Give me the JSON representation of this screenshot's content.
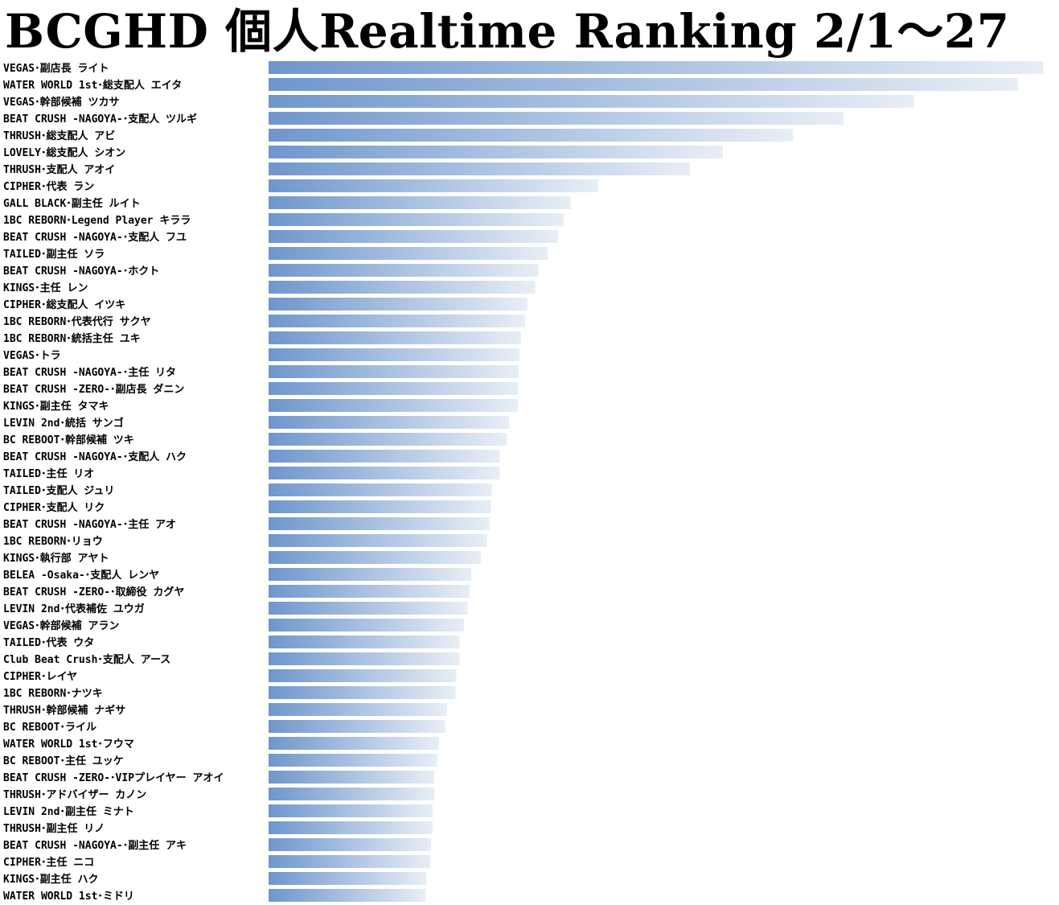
{
  "chart_data": {
    "type": "bar",
    "title": "BCGHD 個人Realtime Ranking  2/1～27",
    "orientation": "horizontal",
    "bar_color": "#6f96cc",
    "bar_color_end": "#e8eef6",
    "categories": [
      "VEGAS･副店長 ライト",
      "WATER WORLD 1st･総支配人 エイタ",
      "VEGAS･幹部候補 ツカサ",
      "BEAT CRUSH -NAGOYA-･支配人 ツルギ",
      "THRUSH･総支配人 アビ",
      "LOVELY･総支配人 シオン",
      "THRUSH･支配人 アオイ",
      "CIPHER･代表 ラン",
      "GALL BLACK･副主任 ルイト",
      "1BC REBORN･Legend Player キララ",
      "BEAT CRUSH -NAGOYA-･支配人 フユ",
      "TAILED･副主任 ソラ",
      "BEAT CRUSH -NAGOYA-･ホクト",
      "KINGS･主任 レン",
      "CIPHER･総支配人 イツキ",
      "1BC REBORN･代表代行 サクヤ",
      "1BC REBORN･統括主任 ユキ",
      "VEGAS･トラ",
      "BEAT CRUSH -NAGOYA-･主任 リタ",
      "BEAT CRUSH -ZERO-･副店長 ダニン",
      "KINGS･副主任 タマキ",
      "LEVIN 2nd･統括 サンゴ",
      "BC REBOOT･幹部候補 ツキ",
      "BEAT CRUSH -NAGOYA-･支配人 ハク",
      "TAILED･主任 リオ",
      "TAILED･支配人 ジュリ",
      "CIPHER･支配人 リク",
      "BEAT CRUSH -NAGOYA-･主任 アオ",
      "1BC REBORN･リョウ",
      "KINGS･執行部 アヤト",
      "BELEA -Osaka-･支配人 レンヤ",
      "BEAT CRUSH -ZERO-･取締役 カグヤ",
      "LEVIN 2nd･代表補佐 ユウガ",
      "VEGAS･幹部候補 アラン",
      "TAILED･代表 ウタ",
      "Club Beat Crush･支配人 アース",
      "CIPHER･レイヤ",
      "1BC REBORN･ナツキ",
      "THRUSH･幹部候補 ナギサ",
      "BC REBOOT･ライル",
      "WATER WORLD 1st･フウマ",
      "BC REBOOT･主任 ユッケ",
      "BEAT CRUSH -ZERO-･VIPプレイヤー アオイ",
      "THRUSH･アドバイザー カノン",
      "LEVIN 2nd･副主任 ミナト",
      "THRUSH･副主任 リノ",
      "BEAT CRUSH -NAGOYA-･副主任 アキ",
      "CIPHER･主任 ニコ",
      "KINGS･副主任 ハク",
      "WATER WORLD 1st･ミドリ"
    ],
    "values": [
      982,
      950,
      818,
      729,
      665,
      576,
      534,
      418,
      383,
      374,
      367,
      354,
      342,
      338,
      328,
      325,
      320,
      318,
      317,
      316,
      316,
      305,
      302,
      293,
      293,
      283,
      282,
      280,
      277,
      269,
      257,
      255,
      252,
      248,
      242,
      242,
      238,
      237,
      226,
      224,
      216,
      214,
      210,
      210,
      208,
      208,
      206,
      205,
      200,
      199
    ],
    "xlim": [
      0,
      1000
    ],
    "grid": false,
    "legend": "none"
  }
}
